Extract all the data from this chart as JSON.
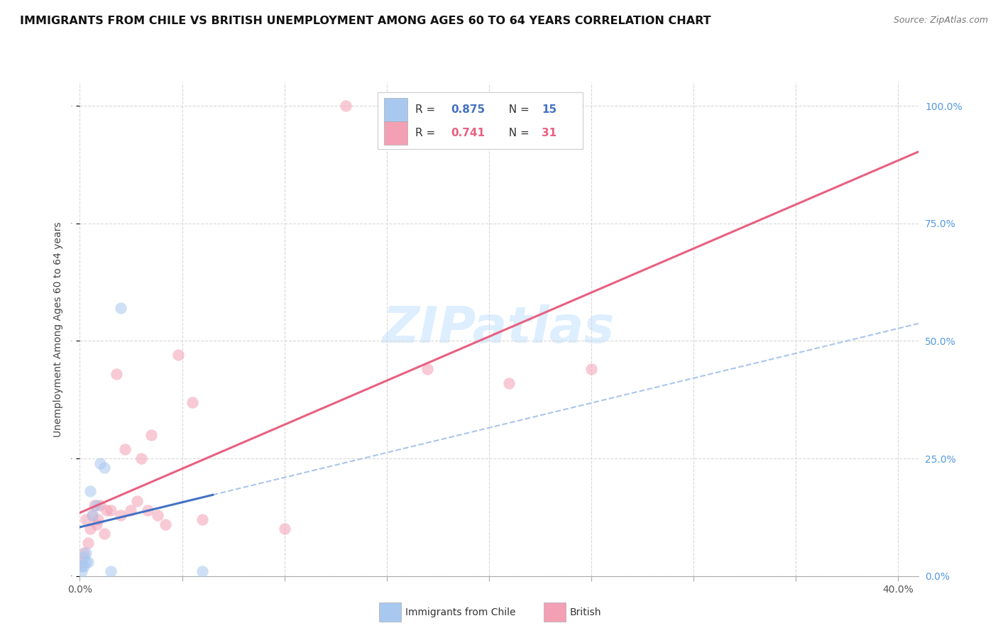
{
  "title": "IMMIGRANTS FROM CHILE VS BRITISH UNEMPLOYMENT AMONG AGES 60 TO 64 YEARS CORRELATION CHART",
  "source": "Source: ZipAtlas.com",
  "ylabel_label": "Unemployment Among Ages 60 to 64 years",
  "x_ticks": [
    0.0,
    0.05,
    0.1,
    0.15,
    0.2,
    0.25,
    0.3,
    0.35,
    0.4
  ],
  "y_ticks": [
    0.0,
    0.25,
    0.5,
    0.75,
    1.0
  ],
  "y_tick_labels": [
    "0.0%",
    "25.0%",
    "50.0%",
    "75.0%",
    "100.0%"
  ],
  "xlim": [
    0.0,
    0.41
  ],
  "ylim": [
    0.0,
    1.05
  ],
  "chile_scatter_x": [
    0.001,
    0.001,
    0.002,
    0.002,
    0.003,
    0.003,
    0.004,
    0.005,
    0.006,
    0.008,
    0.01,
    0.012,
    0.015,
    0.02,
    0.06
  ],
  "chile_scatter_y": [
    0.01,
    0.02,
    0.02,
    0.04,
    0.03,
    0.05,
    0.03,
    0.18,
    0.13,
    0.15,
    0.24,
    0.23,
    0.01,
    0.57,
    0.01
  ],
  "british_scatter_x": [
    0.001,
    0.002,
    0.003,
    0.004,
    0.005,
    0.006,
    0.007,
    0.008,
    0.009,
    0.01,
    0.012,
    0.013,
    0.015,
    0.018,
    0.02,
    0.022,
    0.025,
    0.028,
    0.03,
    0.033,
    0.035,
    0.038,
    0.042,
    0.048,
    0.055,
    0.06,
    0.1,
    0.13,
    0.17,
    0.21,
    0.25
  ],
  "british_scatter_y": [
    0.03,
    0.05,
    0.12,
    0.07,
    0.1,
    0.13,
    0.15,
    0.11,
    0.12,
    0.15,
    0.09,
    0.14,
    0.14,
    0.43,
    0.13,
    0.27,
    0.14,
    0.16,
    0.25,
    0.14,
    0.3,
    0.13,
    0.11,
    0.47,
    0.37,
    0.12,
    0.1,
    1.0,
    0.44,
    0.41,
    0.44
  ],
  "chile_color": "#a8c8f0",
  "british_color": "#f4a0b4",
  "chile_line_color": "#4472c4",
  "british_line_color": "#e86080",
  "chile_dash_color": "#a0c0e8",
  "watermark": "ZIPatlas",
  "watermark_color": "#ddeeff",
  "background_color": "#ffffff",
  "grid_color": "#d8d8d8",
  "title_fontsize": 11.5,
  "axis_label_fontsize": 10,
  "tick_fontsize": 10,
  "scatter_size": 100,
  "scatter_alpha": 0.55
}
